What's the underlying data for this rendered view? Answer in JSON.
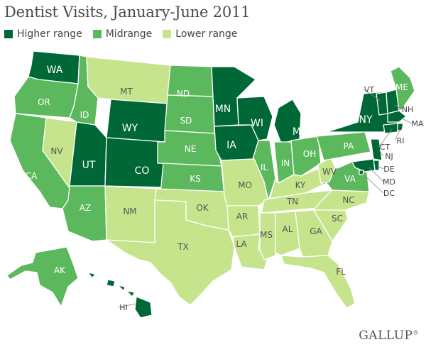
{
  "title": "Dentist Visits, January-June 2011",
  "legend": [
    {
      "label": "Higher range",
      "color": "#006837"
    },
    {
      "label": "Midrange",
      "color": "#5cb85c"
    },
    {
      "label": "Lower range",
      "color": "#c6e48b"
    }
  ],
  "brand": "GALLUP",
  "brand_mark": "®",
  "colors": {
    "higher": "#006837",
    "mid": "#5cb85c",
    "lower": "#c6e48b",
    "border": "#ffffff",
    "label_dark": "#ffffff",
    "label_light": "#555555",
    "label_outside": "#444444"
  },
  "states": [
    {
      "abbr": "WA",
      "range": "higher"
    },
    {
      "abbr": "OR",
      "range": "mid"
    },
    {
      "abbr": "CA",
      "range": "mid"
    },
    {
      "abbr": "NV",
      "range": "lower"
    },
    {
      "abbr": "ID",
      "range": "mid"
    },
    {
      "abbr": "MT",
      "range": "lower"
    },
    {
      "abbr": "WY",
      "range": "higher"
    },
    {
      "abbr": "UT",
      "range": "higher"
    },
    {
      "abbr": "CO",
      "range": "higher"
    },
    {
      "abbr": "AZ",
      "range": "mid"
    },
    {
      "abbr": "NM",
      "range": "lower"
    },
    {
      "abbr": "ND",
      "range": "mid"
    },
    {
      "abbr": "SD",
      "range": "mid"
    },
    {
      "abbr": "NE",
      "range": "mid"
    },
    {
      "abbr": "KS",
      "range": "mid"
    },
    {
      "abbr": "OK",
      "range": "lower"
    },
    {
      "abbr": "TX",
      "range": "lower"
    },
    {
      "abbr": "MN",
      "range": "higher"
    },
    {
      "abbr": "IA",
      "range": "higher"
    },
    {
      "abbr": "MO",
      "range": "lower"
    },
    {
      "abbr": "AR",
      "range": "lower"
    },
    {
      "abbr": "LA",
      "range": "lower"
    },
    {
      "abbr": "WI",
      "range": "higher"
    },
    {
      "abbr": "IL",
      "range": "mid"
    },
    {
      "abbr": "MI",
      "range": "higher"
    },
    {
      "abbr": "IN",
      "range": "mid"
    },
    {
      "abbr": "OH",
      "range": "mid"
    },
    {
      "abbr": "KY",
      "range": "lower"
    },
    {
      "abbr": "TN",
      "range": "lower"
    },
    {
      "abbr": "MS",
      "range": "lower"
    },
    {
      "abbr": "AL",
      "range": "lower"
    },
    {
      "abbr": "GA",
      "range": "lower"
    },
    {
      "abbr": "FL",
      "range": "lower"
    },
    {
      "abbr": "SC",
      "range": "lower"
    },
    {
      "abbr": "NC",
      "range": "lower"
    },
    {
      "abbr": "VA",
      "range": "mid"
    },
    {
      "abbr": "WV",
      "range": "lower"
    },
    {
      "abbr": "PA",
      "range": "mid"
    },
    {
      "abbr": "NY",
      "range": "higher"
    },
    {
      "abbr": "VT",
      "range": "higher"
    },
    {
      "abbr": "NH",
      "range": "higher"
    },
    {
      "abbr": "ME",
      "range": "mid"
    },
    {
      "abbr": "MA",
      "range": "higher"
    },
    {
      "abbr": "RI",
      "range": "higher"
    },
    {
      "abbr": "CT",
      "range": "higher"
    },
    {
      "abbr": "NJ",
      "range": "higher"
    },
    {
      "abbr": "DE",
      "range": "higher"
    },
    {
      "abbr": "MD",
      "range": "higher"
    },
    {
      "abbr": "DC",
      "range": "higher"
    },
    {
      "abbr": "AK",
      "range": "mid"
    },
    {
      "abbr": "HI",
      "range": "higher"
    }
  ]
}
